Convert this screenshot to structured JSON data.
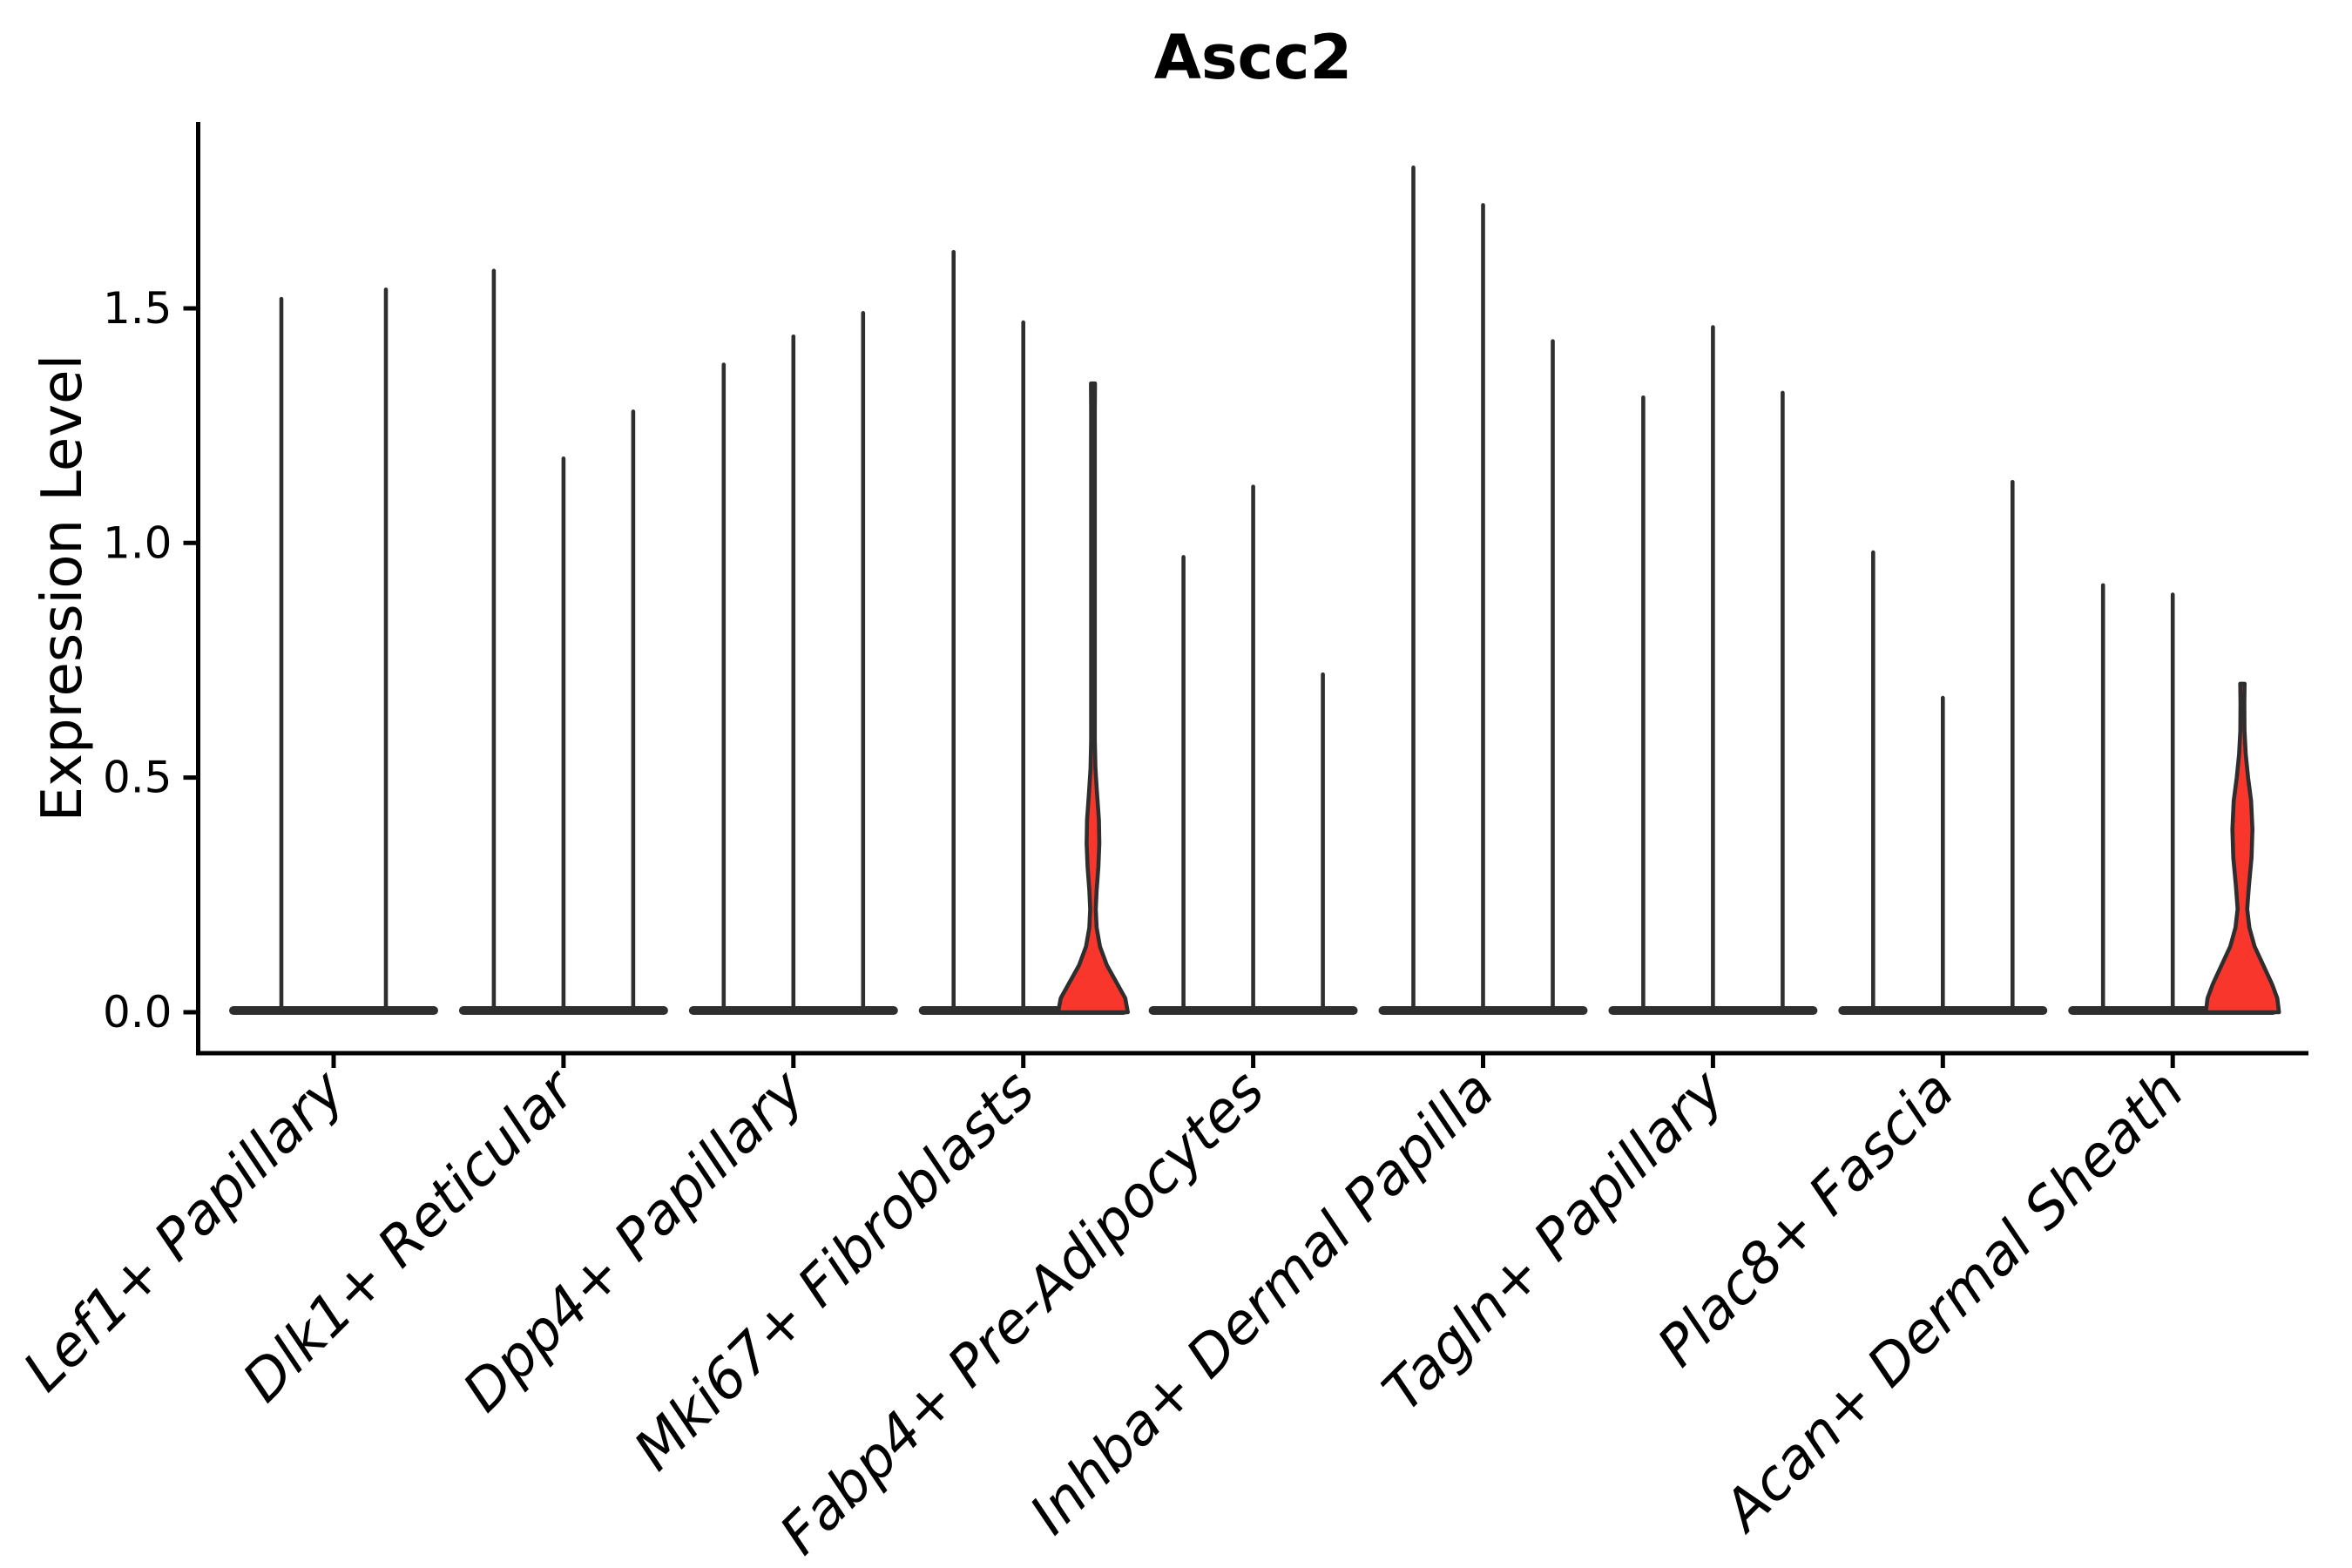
{
  "title": "Ascc2",
  "axes": {
    "ylabel": "Expression Level",
    "ytick_labels": [
      "0.0",
      "0.5",
      "1.0",
      "1.5"
    ]
  },
  "chart_data": {
    "type": "violin",
    "title": "Ascc2",
    "xlabel": "",
    "ylabel": "Expression Level",
    "ylim": [
      -0.09,
      1.88
    ],
    "yticks": [
      0,
      0.5,
      1.0,
      1.5
    ],
    "ytick_labels": [
      "0.0",
      "0.5",
      "1.0",
      "1.5"
    ],
    "grid": false,
    "legend": "none",
    "categories": [
      "Lef1+ Papillary",
      "Dlk1+ Reticular",
      "Dpp4+ Papillary",
      "Mki67+ Fibroblasts",
      "Fabp4+ Pre-Adipocytes",
      "Inhba+ Dermal Papilla",
      "Tagln+ Papillary",
      "Plac8+ Fascia",
      "Acan+ Dermal Sheath"
    ],
    "description": "Violin plot of Ascc2 expression per fibroblast cluster; most violins collapse to a flat disc at 0 with a thin spike to the max expressed cell; two violins are highlighted red with visible density bulges near 0.",
    "groups": [
      {
        "label": "Lef1+ Papillary",
        "violins": [
          {
            "max": 1.52,
            "highlighted": false
          },
          {
            "max": 1.54,
            "highlighted": false
          }
        ]
      },
      {
        "label": "Dlk1+ Reticular",
        "violins": [
          {
            "max": 1.58,
            "highlighted": false
          },
          {
            "max": 1.18,
            "highlighted": false
          },
          {
            "max": 1.28,
            "highlighted": false
          }
        ]
      },
      {
        "label": "Dpp4+ Papillary",
        "violins": [
          {
            "max": 1.38,
            "highlighted": false
          },
          {
            "max": 1.44,
            "highlighted": false
          },
          {
            "max": 1.49,
            "highlighted": false
          }
        ]
      },
      {
        "label": "Mki67+ Fibroblasts",
        "violins": [
          {
            "max": 1.62,
            "highlighted": false
          },
          {
            "max": 1.47,
            "highlighted": false
          },
          {
            "max": 1.34,
            "highlighted": true,
            "profile": [
              [
                0,
                40
              ],
              [
                0.03,
                37
              ],
              [
                0.06,
                28
              ],
              [
                0.1,
                16
              ],
              [
                0.14,
                8
              ],
              [
                0.18,
                4.2
              ],
              [
                0.22,
                3.2
              ],
              [
                0.26,
                4.2
              ],
              [
                0.31,
                6.2
              ],
              [
                0.36,
                7.3
              ],
              [
                0.41,
                6.8
              ],
              [
                0.47,
                4.5
              ],
              [
                0.52,
                2.8
              ],
              [
                0.58,
                2.1
              ],
              [
                1.28,
                2.1
              ],
              [
                1.34,
                2.3
              ]
            ]
          }
        ]
      },
      {
        "label": "Fabp4+ Pre-Adipocytes",
        "violins": [
          {
            "max": 0.97,
            "highlighted": false
          },
          {
            "max": 1.12,
            "highlighted": false
          },
          {
            "max": 0.72,
            "highlighted": false
          }
        ]
      },
      {
        "label": "Inhba+ Dermal Papilla",
        "violins": [
          {
            "max": 1.8,
            "highlighted": false
          },
          {
            "max": 1.72,
            "highlighted": false
          },
          {
            "max": 1.43,
            "highlighted": false
          }
        ]
      },
      {
        "label": "Tagln+ Papillary",
        "violins": [
          {
            "max": 1.31,
            "highlighted": false
          },
          {
            "max": 1.46,
            "highlighted": false
          },
          {
            "max": 1.32,
            "highlighted": false
          }
        ]
      },
      {
        "label": "Plac8+ Fascia",
        "violins": [
          {
            "max": 0.98,
            "highlighted": false
          },
          {
            "max": 0.67,
            "highlighted": false
          },
          {
            "max": 1.13,
            "highlighted": false
          }
        ]
      },
      {
        "label": "Acan+ Dermal Sheath",
        "violins": [
          {
            "max": 0.91,
            "highlighted": false
          },
          {
            "max": 0.89,
            "highlighted": false
          },
          {
            "max": 0.7,
            "highlighted": true,
            "profile": [
              [
                0,
                42
              ],
              [
                0.03,
                40
              ],
              [
                0.06,
                34
              ],
              [
                0.1,
                24
              ],
              [
                0.14,
                14
              ],
              [
                0.18,
                8
              ],
              [
                0.22,
                5.5
              ],
              [
                0.27,
                7.5
              ],
              [
                0.33,
                10.5
              ],
              [
                0.39,
                11.5
              ],
              [
                0.45,
                10
              ],
              [
                0.5,
                6.5
              ],
              [
                0.55,
                3.8
              ],
              [
                0.6,
                2.4
              ],
              [
                0.66,
                2.2
              ],
              [
                0.7,
                2.5
              ]
            ]
          }
        ]
      }
    ],
    "colors": {
      "violin_line": "#2e2e2e",
      "highlight_fill": "#f8362b",
      "axis": "#000000",
      "text": "#000000",
      "background": "#ffffff"
    }
  }
}
